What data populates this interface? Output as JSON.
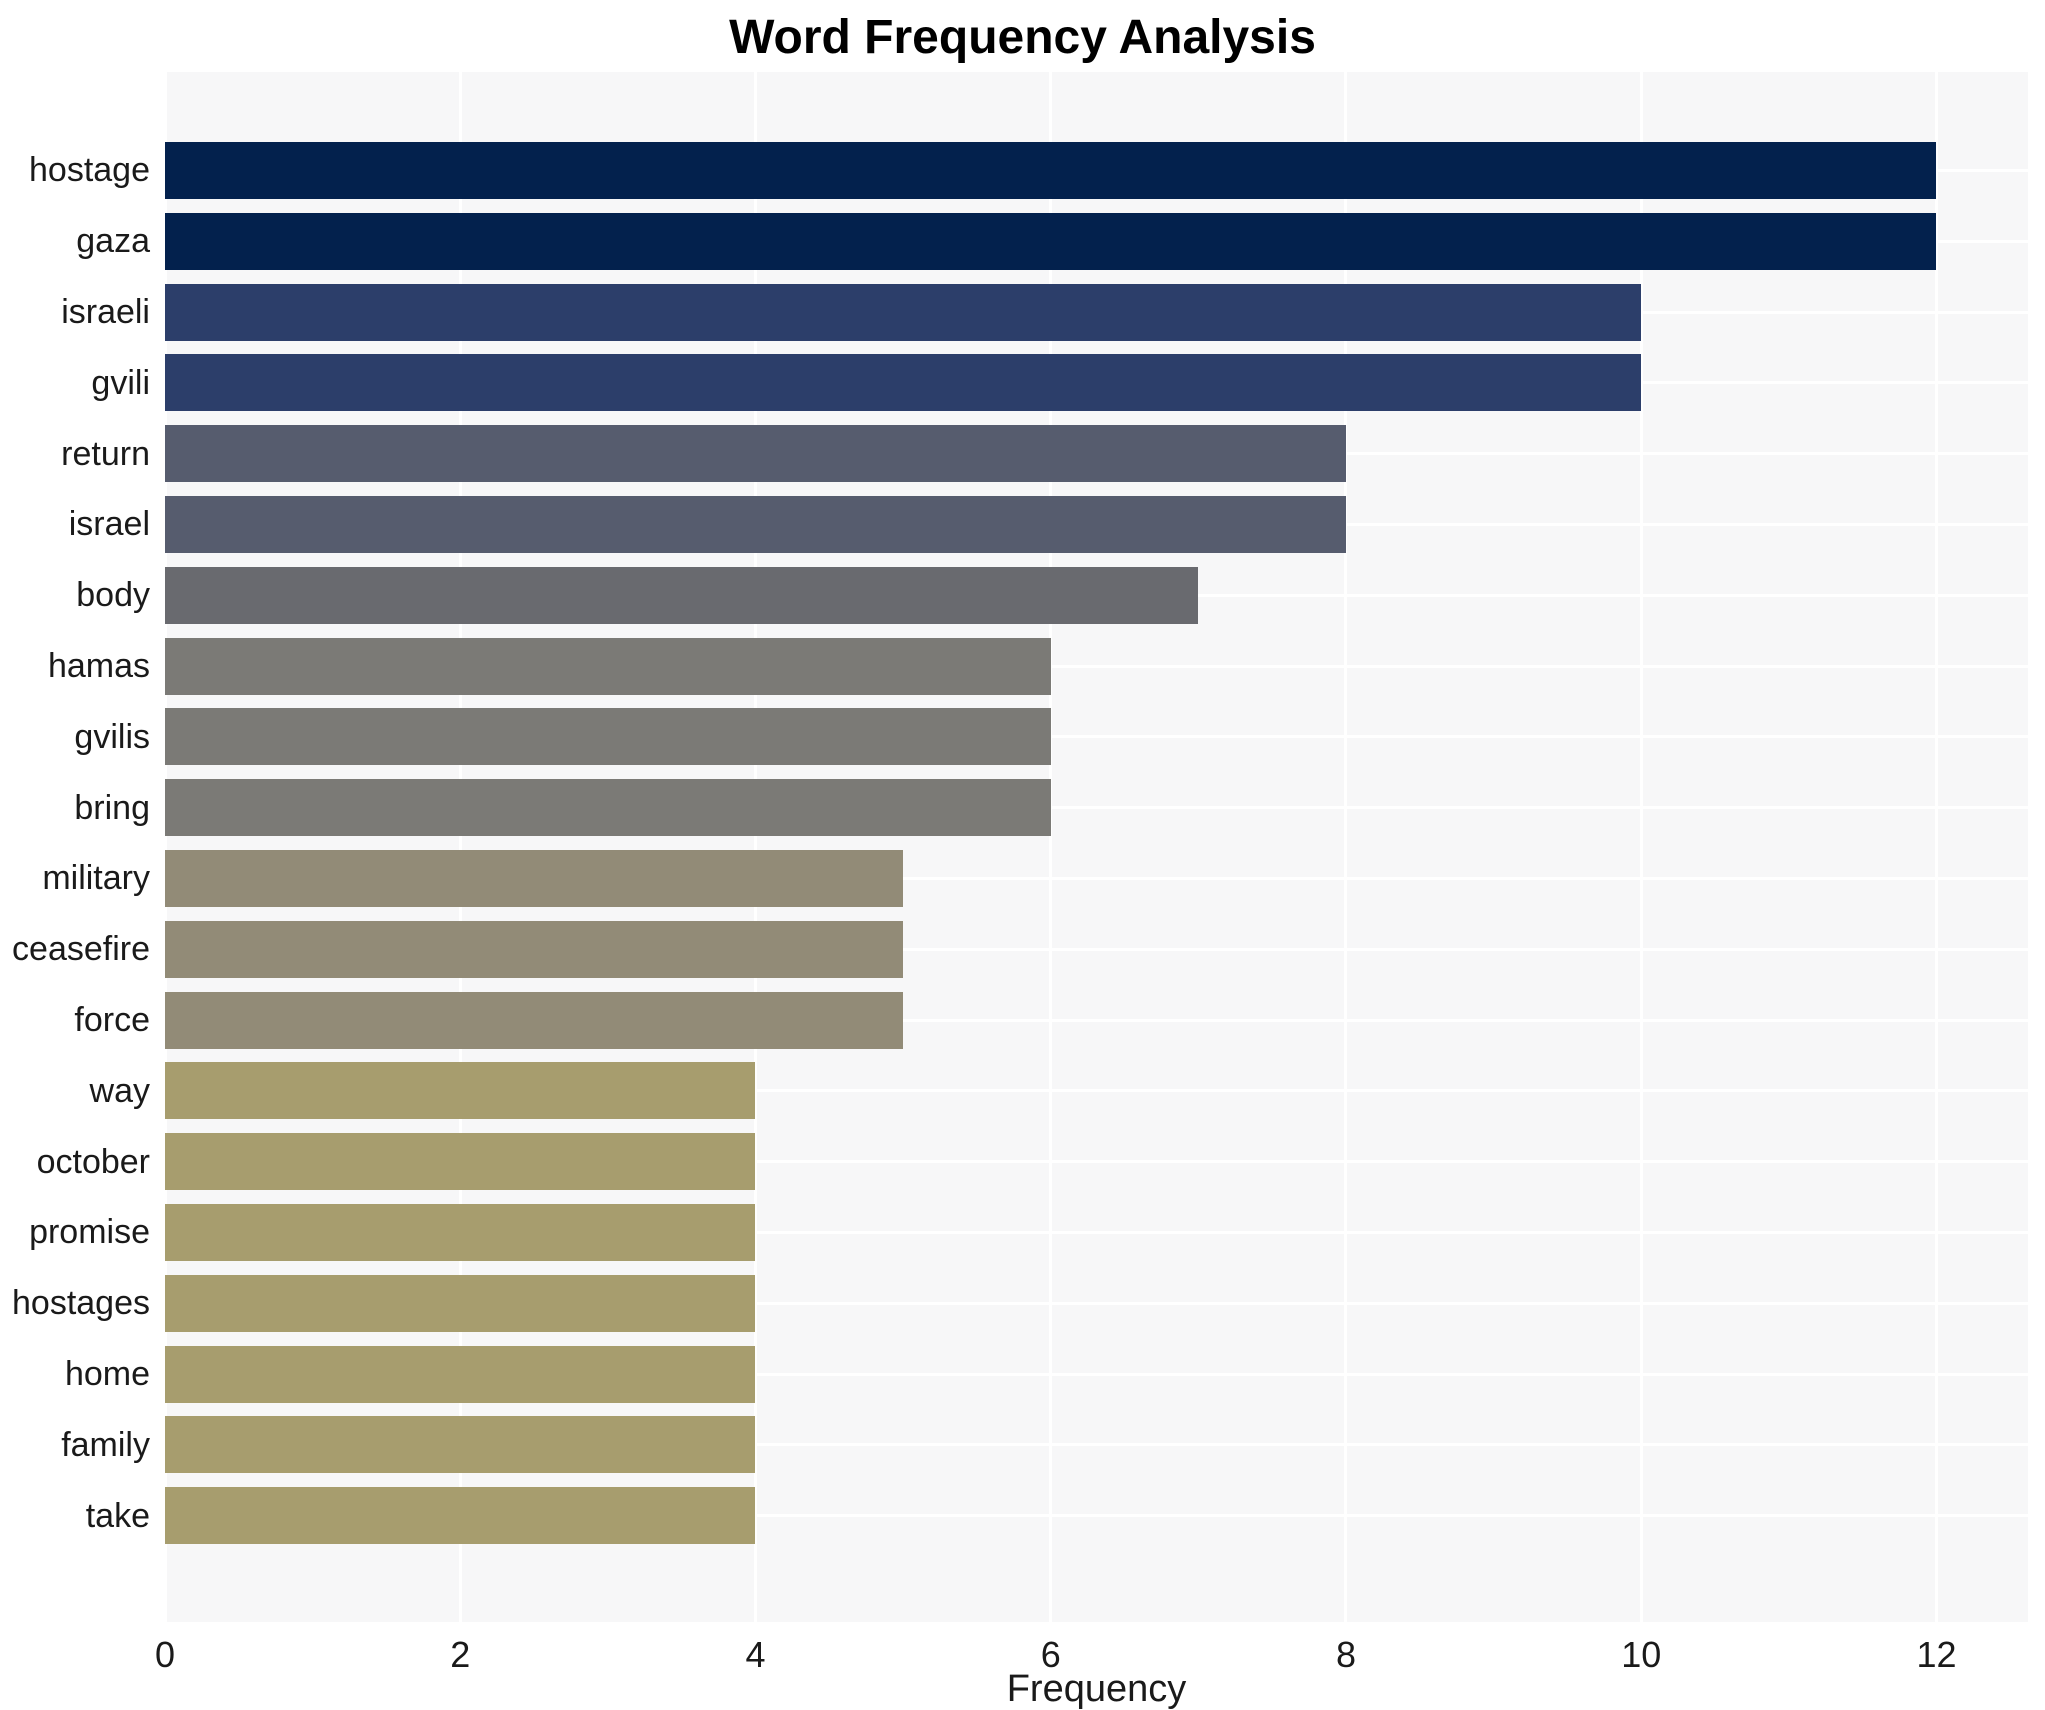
{
  "chart_data": {
    "type": "bar",
    "orientation": "horizontal",
    "title": "Word Frequency Analysis",
    "xlabel": "Frequency",
    "ylabel": "",
    "categories": [
      "hostage",
      "gaza",
      "israeli",
      "gvili",
      "return",
      "israel",
      "body",
      "hamas",
      "gvilis",
      "bring",
      "military",
      "ceasefire",
      "force",
      "way",
      "october",
      "promise",
      "hostages",
      "home",
      "family",
      "take"
    ],
    "values": [
      12,
      12,
      10,
      10,
      8,
      8,
      7,
      6,
      6,
      6,
      5,
      5,
      5,
      4,
      4,
      4,
      4,
      4,
      4,
      4
    ],
    "bar_colors": [
      "#03214d",
      "#03214d",
      "#2c3e6a",
      "#2c3e6a",
      "#565c6e",
      "#565c6e",
      "#696a6f",
      "#7b7a76",
      "#7b7a76",
      "#7b7a76",
      "#928b77",
      "#928b77",
      "#928b77",
      "#a79d6e",
      "#a79d6e",
      "#a79d6e",
      "#a79d6e",
      "#a79d6e",
      "#a79d6e",
      "#a79d6e"
    ],
    "xticks": [
      0,
      2,
      4,
      6,
      8,
      10,
      12
    ],
    "xlim": [
      0,
      12.62
    ],
    "grid": "white vertical gridlines at x ticks and white horizontal gridlines at category centers on light gray background",
    "legend_position": "none"
  },
  "colors": {
    "figure_background": "#ffffff",
    "plot_background": "#f7f7f8",
    "gridline": "#ffffff",
    "tick_text": "#1a1a1a",
    "title_text": "#000000"
  }
}
